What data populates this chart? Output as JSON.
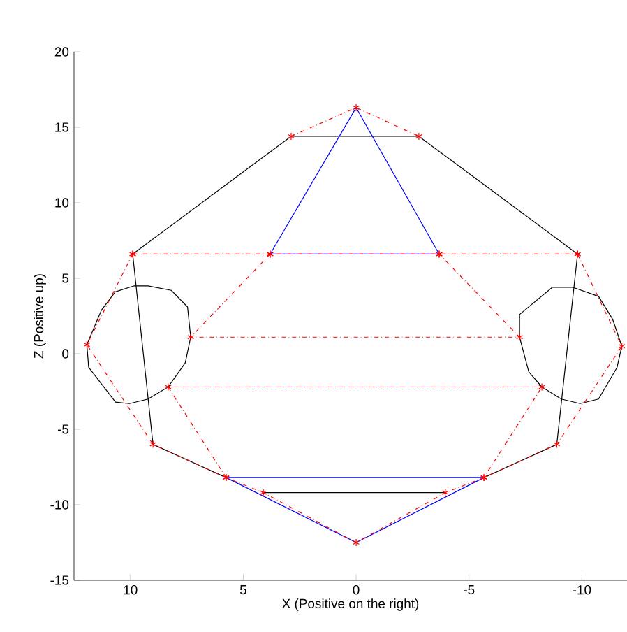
{
  "chart_data": {
    "type": "line",
    "xlabel": "X (Positive on the right)",
    "ylabel": "Z (Positive up)",
    "xlim": [
      12.5,
      -12
    ],
    "ylim": [
      -15,
      20
    ],
    "xticks": [
      10,
      5,
      0,
      -5,
      -10
    ],
    "yticks": [
      -15,
      -10,
      -5,
      0,
      5,
      10,
      15,
      20
    ],
    "grid": false,
    "series": [
      {
        "color": "#000000",
        "line_style": "solid",
        "marker": "none",
        "x": [
          5.76,
          9.0,
          9.9,
          2.88,
          -2.78,
          -9.81,
          -8.89,
          -5.66
        ],
        "values": [
          -8.2,
          -6.0,
          6.6,
          14.4,
          14.4,
          6.6,
          -6.0,
          -8.2
        ]
      },
      {
        "color": "#000000",
        "line_style": "solid",
        "marker": "none",
        "x": [
          4.11,
          -3.95
        ],
        "values": [
          -9.2,
          -9.2
        ]
      },
      {
        "color": "#000000",
        "line_style": "solid",
        "marker": "none",
        "x": [
          11.93,
          11.28,
          10.67,
          9.83,
          9.22,
          8.19,
          7.47,
          7.33
        ],
        "values": [
          0.6,
          2.9,
          4.1,
          4.5,
          4.5,
          4.2,
          3.1,
          1.1
        ]
      },
      {
        "color": "#000000",
        "line_style": "solid",
        "marker": "none",
        "x": [
          7.33,
          7.57,
          8.33,
          9.22,
          10.04,
          10.66,
          11.85,
          11.93
        ],
        "values": [
          1.1,
          -0.6,
          -2.2,
          -3.0,
          -3.3,
          -3.2,
          -0.9,
          0.6
        ]
      },
      {
        "color": "#000000",
        "line_style": "solid",
        "marker": "none",
        "x": [
          -7.24,
          -7.24,
          -8.69,
          -9.61,
          -10.74,
          -11.36,
          -11.77
        ],
        "values": [
          1.1,
          2.6,
          4.4,
          4.4,
          3.8,
          2.3,
          0.5
        ]
      },
      {
        "color": "#000000",
        "line_style": "solid",
        "marker": "none",
        "x": [
          -7.24,
          -7.65,
          -8.23,
          -9.09,
          -9.92,
          -10.74,
          -11.56,
          -11.77
        ],
        "values": [
          1.1,
          -1.2,
          -2.2,
          -3.0,
          -3.3,
          -3.0,
          -0.9,
          0.5
        ]
      },
      {
        "color": "#0000ff",
        "line_style": "solid",
        "marker": "none",
        "x": [
          3.81,
          0,
          -3.68
        ],
        "values": [
          6.6,
          16.3,
          6.6
        ]
      },
      {
        "color": "#0000ff",
        "line_style": "solid",
        "marker": "none",
        "x": [
          3.81,
          -3.68
        ],
        "values": [
          6.6,
          6.6
        ]
      },
      {
        "color": "#0000ff",
        "line_style": "solid",
        "marker": "none",
        "x": [
          5.76,
          -5.66
        ],
        "values": [
          -8.2,
          -8.2
        ]
      },
      {
        "color": "#0000ff",
        "line_style": "solid",
        "marker": "none",
        "x": [
          5.76,
          0,
          -5.66
        ],
        "values": [
          -8.2,
          -12.5,
          -8.2
        ]
      },
      {
        "color": "#ff0000",
        "line_style": "dashdot",
        "marker": "cross",
        "x": [
          2.88,
          0,
          -2.78
        ],
        "values": [
          14.4,
          16.3,
          14.4
        ]
      },
      {
        "color": "#ff0000",
        "line_style": "dashdot",
        "marker": "cross",
        "x": [
          9.9,
          3.81,
          -3.68,
          -9.81
        ],
        "values": [
          6.6,
          6.6,
          6.6,
          6.6
        ]
      },
      {
        "color": "#ff0000",
        "line_style": "dashdot",
        "marker": "cross",
        "x": [
          9.9,
          11.93,
          9.0,
          5.76,
          4.11,
          0,
          -3.95,
          -5.66,
          -8.89,
          -11.77,
          -9.81
        ],
        "values": [
          6.6,
          0.6,
          -6.0,
          -8.2,
          -9.2,
          -12.5,
          -9.2,
          -8.2,
          -6.0,
          0.5,
          6.6
        ]
      },
      {
        "color": "#ff0000",
        "line_style": "dashdot",
        "marker": "cross",
        "x": [
          3.81,
          7.33,
          -7.24,
          -3.68
        ],
        "values": [
          6.6,
          1.1,
          1.1,
          6.6
        ]
      },
      {
        "color": "#ff0000",
        "line_style": "dashdot",
        "marker": "cross",
        "x": [
          5.76,
          8.33,
          -8.23,
          -5.66
        ],
        "values": [
          -8.2,
          -2.2,
          -2.2,
          -8.2
        ]
      }
    ]
  }
}
